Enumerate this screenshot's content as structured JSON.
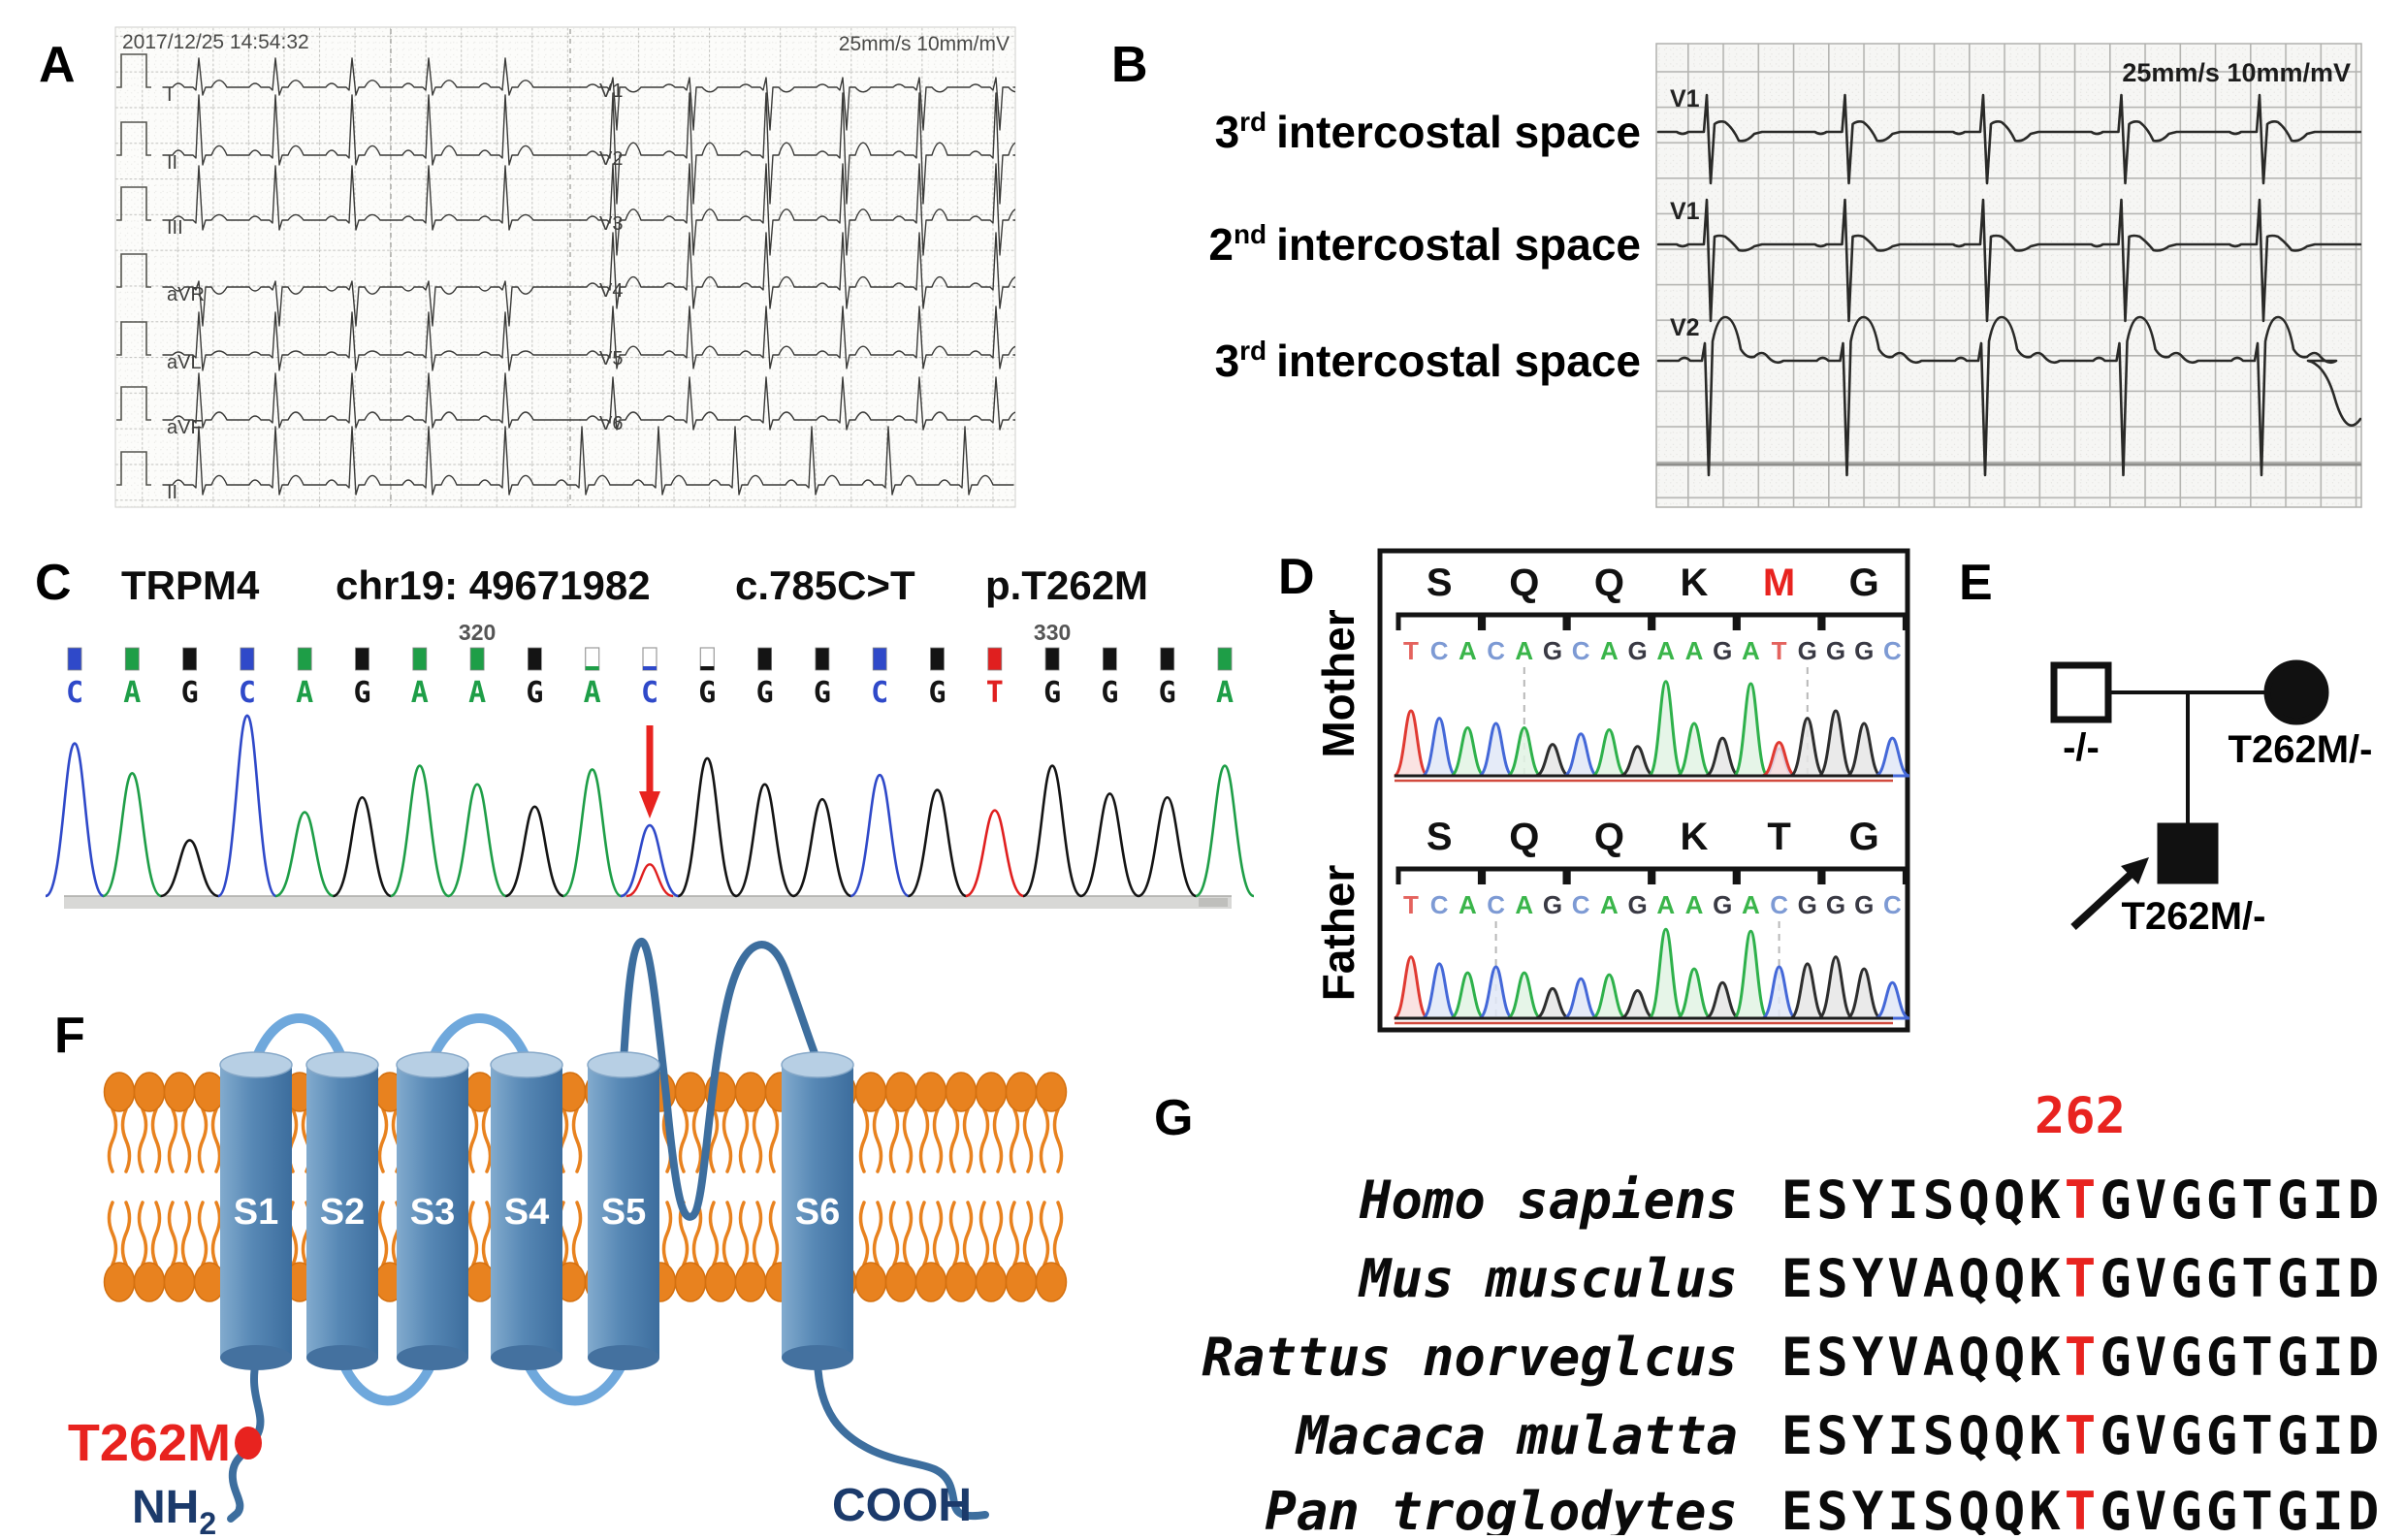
{
  "panel_labels": {
    "A": "A",
    "B": "B",
    "C": "C",
    "D": "D",
    "E": "E",
    "F": "F",
    "G": "G"
  },
  "ecg_12lead": {
    "timestamp": "2017/12/25 14:54:32",
    "calibration": "25mm/s 10mm/mV",
    "leads_left": [
      {
        "label": "I",
        "p": 4,
        "r": 30,
        "s": 8,
        "t": 9
      },
      {
        "label": "II",
        "p": 5,
        "r": 62,
        "s": 10,
        "t": 12
      },
      {
        "label": "III",
        "p": 4,
        "r": 56,
        "s": 10,
        "t": 7
      },
      {
        "label": "aVR",
        "p": -4,
        "r": 6,
        "s": 40,
        "t": -9
      },
      {
        "label": "aVL",
        "p": 3,
        "r": 44,
        "s": 16,
        "t": 5
      },
      {
        "label": "aVF",
        "p": 4,
        "r": 48,
        "s": 8,
        "t": 10
      }
    ],
    "leads_right": [
      {
        "label": "V1",
        "p": 3,
        "r": 10,
        "s": 44,
        "t": -6
      },
      {
        "label": "V2",
        "p": 4,
        "r": 64,
        "s": 50,
        "t": 16
      },
      {
        "label": "V3",
        "p": 4,
        "r": 58,
        "s": 36,
        "t": 14
      },
      {
        "label": "V4",
        "p": 4,
        "r": 56,
        "s": 22,
        "t": 13
      },
      {
        "label": "V5",
        "p": 4,
        "r": 50,
        "s": 14,
        "t": 11
      },
      {
        "label": "V6",
        "p": 4,
        "r": 44,
        "s": 10,
        "t": 10
      }
    ],
    "rhythm_lead": {
      "label": "II",
      "p": 5,
      "r": 60,
      "s": 10,
      "t": 12
    }
  },
  "ecg_high_leads": {
    "calibration": "25mm/s 10mm/mV",
    "rows": [
      {
        "space": "3",
        "ordinal": "rd",
        "text": "intercostal space",
        "lead": "V1",
        "type": "brugada",
        "r": 38,
        "s": 53,
        "h": 12,
        "t": 9
      },
      {
        "space": "2",
        "ordinal": "nd",
        "text": "intercostal space",
        "lead": "V1",
        "type": "brugada",
        "r": 46,
        "s": 79,
        "h": 10,
        "t": 6
      },
      {
        "space": "3",
        "ordinal": "rd",
        "text": "intercostal space",
        "lead": "V2",
        "type": "v2",
        "r": 20,
        "s": 118,
        "dome": 45
      }
    ]
  },
  "sanger": {
    "gene": "TRPM4",
    "locus": "chr19: 49671982",
    "cdna": "c.785C>T",
    "protein": "p.T262M",
    "pos_labels": [
      {
        "text": "320",
        "index": 7
      },
      {
        "text": "330",
        "index": 17
      }
    ],
    "arrow_index": 10,
    "box_white_indices": [
      9,
      10,
      11
    ],
    "bases": [
      {
        "b": "C",
        "h": 0.82
      },
      {
        "b": "A",
        "h": 0.66
      },
      {
        "b": "G",
        "h": 0.3
      },
      {
        "b": "C",
        "h": 0.97
      },
      {
        "b": "A",
        "h": 0.45
      },
      {
        "b": "G",
        "h": 0.53
      },
      {
        "b": "A",
        "h": 0.7
      },
      {
        "b": "A",
        "h": 0.6
      },
      {
        "b": "G",
        "h": 0.48
      },
      {
        "b": "A",
        "h": 0.68
      },
      {
        "b": "C",
        "h": 0.38,
        "het": {
          "b": "T",
          "h": 0.17
        }
      },
      {
        "b": "G",
        "h": 0.74
      },
      {
        "b": "G",
        "h": 0.6
      },
      {
        "b": "G",
        "h": 0.52
      },
      {
        "b": "C",
        "h": 0.65
      },
      {
        "b": "G",
        "h": 0.57
      },
      {
        "b": "T",
        "h": 0.46
      },
      {
        "b": "G",
        "h": 0.7
      },
      {
        "b": "G",
        "h": 0.55
      },
      {
        "b": "G",
        "h": 0.53
      },
      {
        "b": "A",
        "h": 0.7
      }
    ]
  },
  "trio": {
    "mother": {
      "name": "Mother",
      "aa": [
        "S",
        "Q",
        "Q",
        "K",
        "M",
        "G"
      ],
      "aa_red": 4,
      "dashed": [
        4,
        14
      ],
      "bases": [
        {
          "b": "T",
          "h": 0.62
        },
        {
          "b": "C",
          "h": 0.55
        },
        {
          "b": "A",
          "h": 0.46
        },
        {
          "b": "C",
          "h": 0.5
        },
        {
          "b": "A",
          "h": 0.46
        },
        {
          "b": "G",
          "h": 0.3
        },
        {
          "b": "C",
          "h": 0.4
        },
        {
          "b": "A",
          "h": 0.44
        },
        {
          "b": "G",
          "h": 0.28
        },
        {
          "b": "A",
          "h": 0.9
        },
        {
          "b": "A",
          "h": 0.5
        },
        {
          "b": "G",
          "h": 0.36
        },
        {
          "b": "A",
          "h": 0.88
        },
        {
          "b": "T",
          "h": 0.32,
          "het": {
            "b": "C",
            "h": 0.26
          }
        },
        {
          "b": "G",
          "h": 0.55
        },
        {
          "b": "G",
          "h": 0.62
        },
        {
          "b": "G",
          "h": 0.5
        },
        {
          "b": "C",
          "h": 0.36
        }
      ]
    },
    "father": {
      "name": "Father",
      "aa": [
        "S",
        "Q",
        "Q",
        "K",
        "T",
        "G"
      ],
      "aa_red": -1,
      "dashed": [
        3,
        13
      ],
      "bases": [
        {
          "b": "T",
          "h": 0.62
        },
        {
          "b": "C",
          "h": 0.55
        },
        {
          "b": "A",
          "h": 0.46
        },
        {
          "b": "C",
          "h": 0.52
        },
        {
          "b": "A",
          "h": 0.46
        },
        {
          "b": "G",
          "h": 0.3
        },
        {
          "b": "C",
          "h": 0.4
        },
        {
          "b": "A",
          "h": 0.44
        },
        {
          "b": "G",
          "h": 0.28
        },
        {
          "b": "A",
          "h": 0.9
        },
        {
          "b": "A",
          "h": 0.5
        },
        {
          "b": "G",
          "h": 0.36
        },
        {
          "b": "A",
          "h": 0.88
        },
        {
          "b": "C",
          "h": 0.52
        },
        {
          "b": "G",
          "h": 0.55
        },
        {
          "b": "G",
          "h": 0.62
        },
        {
          "b": "G",
          "h": 0.5
        },
        {
          "b": "C",
          "h": 0.36
        }
      ]
    }
  },
  "pedigree": {
    "father_genotype": "-/-",
    "mother_genotype": "T262M/-",
    "proband_genotype": "T262M/-"
  },
  "topology": {
    "segments": [
      "S1",
      "S2",
      "S3",
      "S4",
      "S5",
      "S6"
    ],
    "mutation_label": "T262M",
    "nterm": "NH",
    "nterm_sub": "2",
    "cterm": "COOH"
  },
  "alignment": {
    "position_label": "262",
    "red_column": 8,
    "rows": [
      {
        "species": "Homo sapiens",
        "sequence": "ESYISQQKTGVGGTGID"
      },
      {
        "species": "Mus musculus",
        "sequence": "ESYVAQQKTGVGGTGID"
      },
      {
        "species": "Rattus norveglcus",
        "sequence": "ESYVAQQKTGVGGTGID"
      },
      {
        "species": "Macaca mulatta",
        "sequence": "ESYISQQKTGVGGTGID"
      },
      {
        "species": "Pan troglodytes",
        "sequence": "ESYISQQKTGVGGTGID"
      }
    ]
  },
  "base_colors": {
    "A": "#1e9e47",
    "C": "#2f49c9",
    "G": "#141414",
    "T": "#e01f1f"
  },
  "base_colors_soft": {
    "A": "#3ab54a",
    "C": "#7d9ad4",
    "G": "#3a3a44",
    "T": "#e4635e"
  },
  "peak_strokes": {
    "A": "#2eb14b",
    "C": "#4468d8",
    "G": "#2e2e2e",
    "T": "#e03a32"
  },
  "peak_fills": {
    "A": "#e2f3e4",
    "C": "#e0e7f7",
    "G": "#e6e6e6",
    "T": "#f9dedd"
  },
  "accents": {
    "red": "#e8231f",
    "navy": "#1b3a6b",
    "light_blue_loop": "#6fa8dc",
    "dark_blue_loop": "#3d6e9e",
    "cylinder_top": "#b7cfe4",
    "lipid": "#e8821f"
  }
}
